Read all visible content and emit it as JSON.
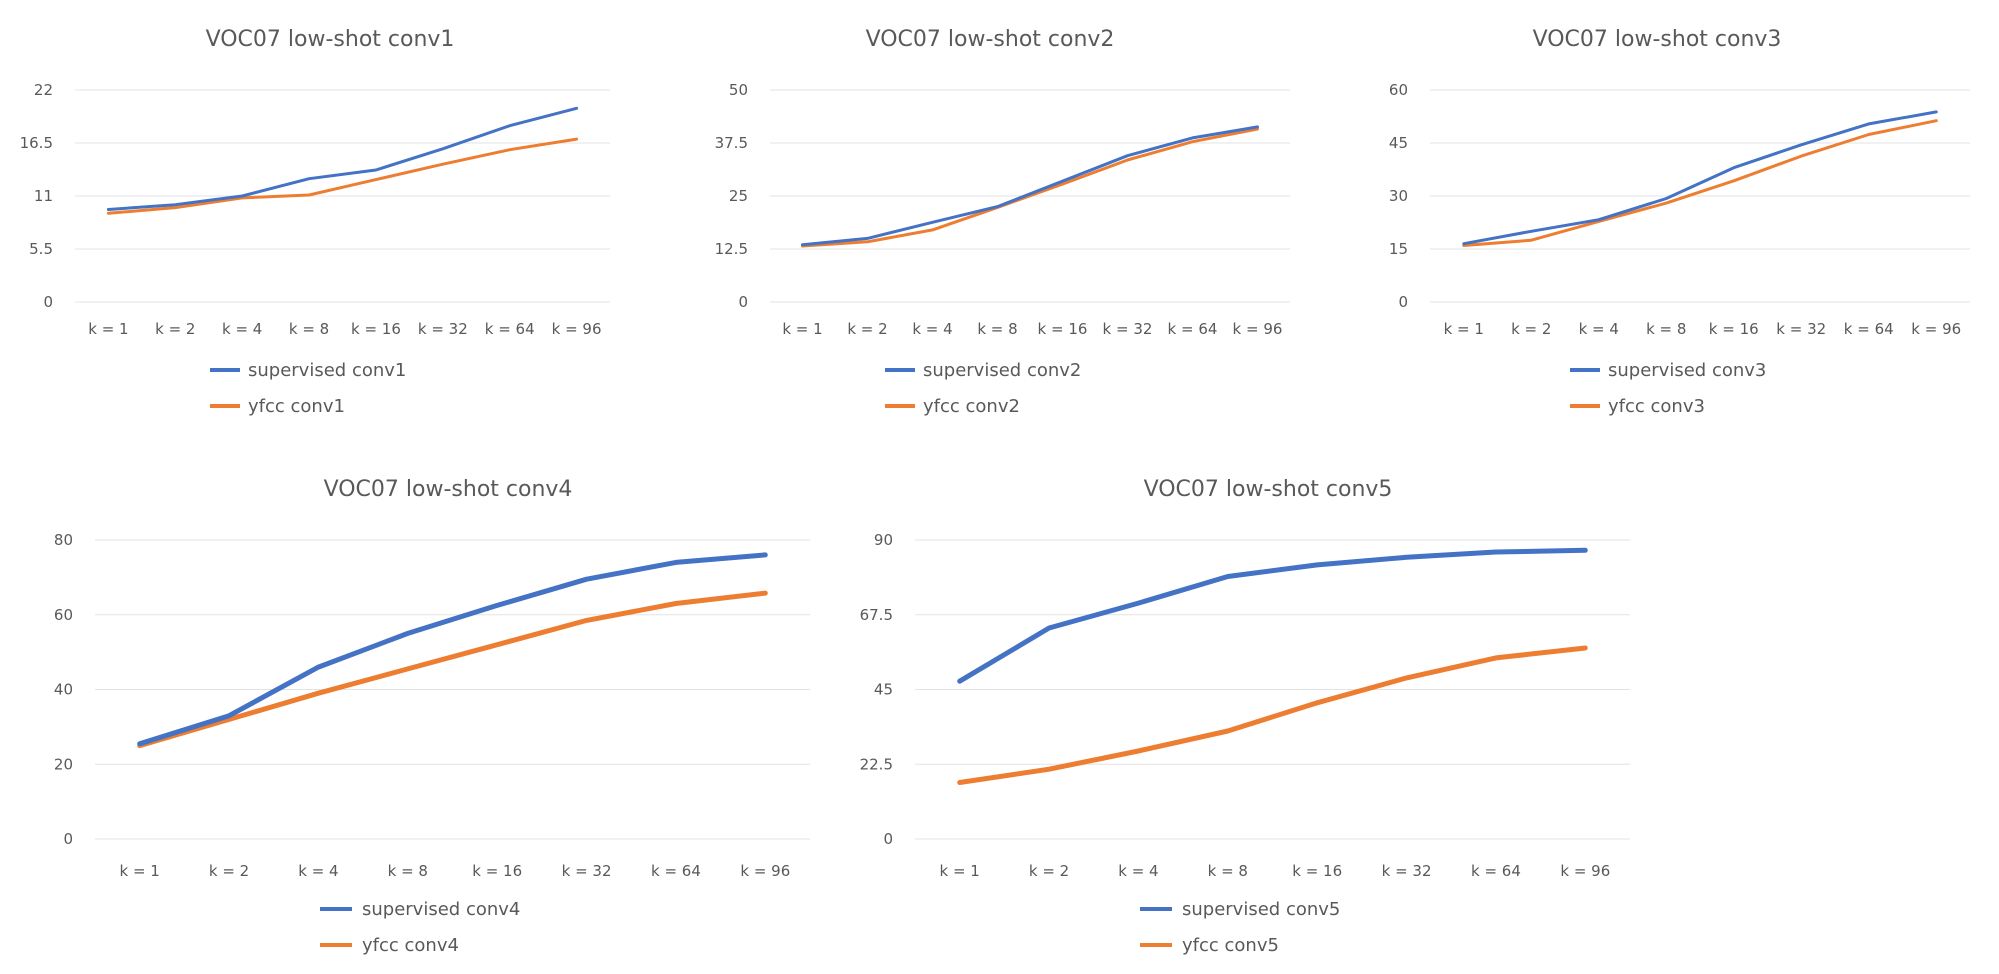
{
  "chart_data": [
    {
      "type": "line",
      "title": "VOC07 low-shot conv1",
      "categories": [
        "k = 1",
        "k = 2",
        "k = 4",
        "k = 8",
        "k = 16",
        "k = 32",
        "k = 64",
        "k = 96"
      ],
      "yticks": [
        "0",
        "5.5",
        "11",
        "16.5",
        "22"
      ],
      "ylim": [
        0,
        22
      ],
      "series": [
        {
          "name": "supervised conv1",
          "color": "#4472c4",
          "values": [
            9.6,
            10.1,
            11.0,
            12.8,
            13.7,
            15.9,
            18.3,
            20.1
          ]
        },
        {
          "name": "yfcc conv1",
          "color": "#ed7d31",
          "values": [
            9.2,
            9.8,
            10.8,
            11.1,
            12.7,
            14.3,
            15.8,
            16.9
          ]
        }
      ],
      "legend": "bottom",
      "grid": true
    },
    {
      "type": "line",
      "title": "VOC07 low-shot conv2",
      "categories": [
        "k = 1",
        "k = 2",
        "k = 4",
        "k = 8",
        "k = 16",
        "k = 32",
        "k = 64",
        "k = 96"
      ],
      "yticks": [
        "0",
        "12.5",
        "25",
        "37.5",
        "50"
      ],
      "ylim": [
        0,
        50
      ],
      "series": [
        {
          "name": "supervised conv2",
          "color": "#4472c4",
          "values": [
            13.5,
            15.0,
            18.8,
            22.5,
            28.5,
            34.5,
            38.7,
            41.3
          ]
        },
        {
          "name": "yfcc conv2",
          "color": "#ed7d31",
          "values": [
            13.2,
            14.2,
            17.0,
            22.3,
            27.8,
            33.5,
            37.8,
            40.8
          ]
        }
      ],
      "legend": "bottom",
      "grid": true
    },
    {
      "type": "line",
      "title": "VOC07 low-shot conv3",
      "categories": [
        "k = 1",
        "k = 2",
        "k = 4",
        "k = 8",
        "k = 16",
        "k = 32",
        "k = 64",
        "k = 96"
      ],
      "yticks": [
        "0",
        "15",
        "30",
        "45",
        "60"
      ],
      "ylim": [
        0,
        60
      ],
      "series": [
        {
          "name": "supervised conv3",
          "color": "#4472c4",
          "values": [
            16.5,
            20.0,
            23.3,
            29.3,
            38.0,
            44.5,
            50.4,
            53.8
          ]
        },
        {
          "name": "yfcc conv3",
          "color": "#ed7d31",
          "values": [
            16.0,
            17.5,
            22.8,
            28.0,
            34.3,
            41.3,
            47.4,
            51.3
          ]
        }
      ],
      "legend": "bottom",
      "grid": true
    },
    {
      "type": "line",
      "title": "VOC07 low-shot conv4",
      "categories": [
        "k = 1",
        "k = 2",
        "k = 4",
        "k = 8",
        "k = 16",
        "k = 32",
        "k = 64",
        "k = 96"
      ],
      "yticks": [
        "0",
        "20",
        "40",
        "60",
        "80"
      ],
      "ylim": [
        0,
        80
      ],
      "series": [
        {
          "name": "supervised conv4",
          "color": "#4472c4",
          "values": [
            25.5,
            33.0,
            46.0,
            55.0,
            62.5,
            69.5,
            74.0,
            76.0
          ]
        },
        {
          "name": "yfcc conv4",
          "color": "#ed7d31",
          "values": [
            25.0,
            32.0,
            39.0,
            45.5,
            52.0,
            58.5,
            63.0,
            65.8
          ]
        }
      ],
      "legend": "bottom",
      "grid": true
    },
    {
      "type": "line",
      "title": "VOC07 low-shot conv5",
      "categories": [
        "k = 1",
        "k = 2",
        "k = 4",
        "k = 8",
        "k = 16",
        "k = 32",
        "k = 64",
        "k = 96"
      ],
      "yticks": [
        "0",
        "22.5",
        "45",
        "67.5",
        "90"
      ],
      "ylim": [
        0,
        90
      ],
      "series": [
        {
          "name": "supervised conv5",
          "color": "#4472c4",
          "values": [
            47.5,
            63.5,
            71.0,
            79.0,
            82.5,
            84.8,
            86.4,
            86.9
          ]
        },
        {
          "name": "yfcc conv5",
          "color": "#ed7d31",
          "values": [
            17.0,
            21.0,
            26.5,
            32.5,
            41.0,
            48.5,
            54.5,
            57.5
          ]
        }
      ],
      "legend": "bottom",
      "grid": true
    }
  ]
}
